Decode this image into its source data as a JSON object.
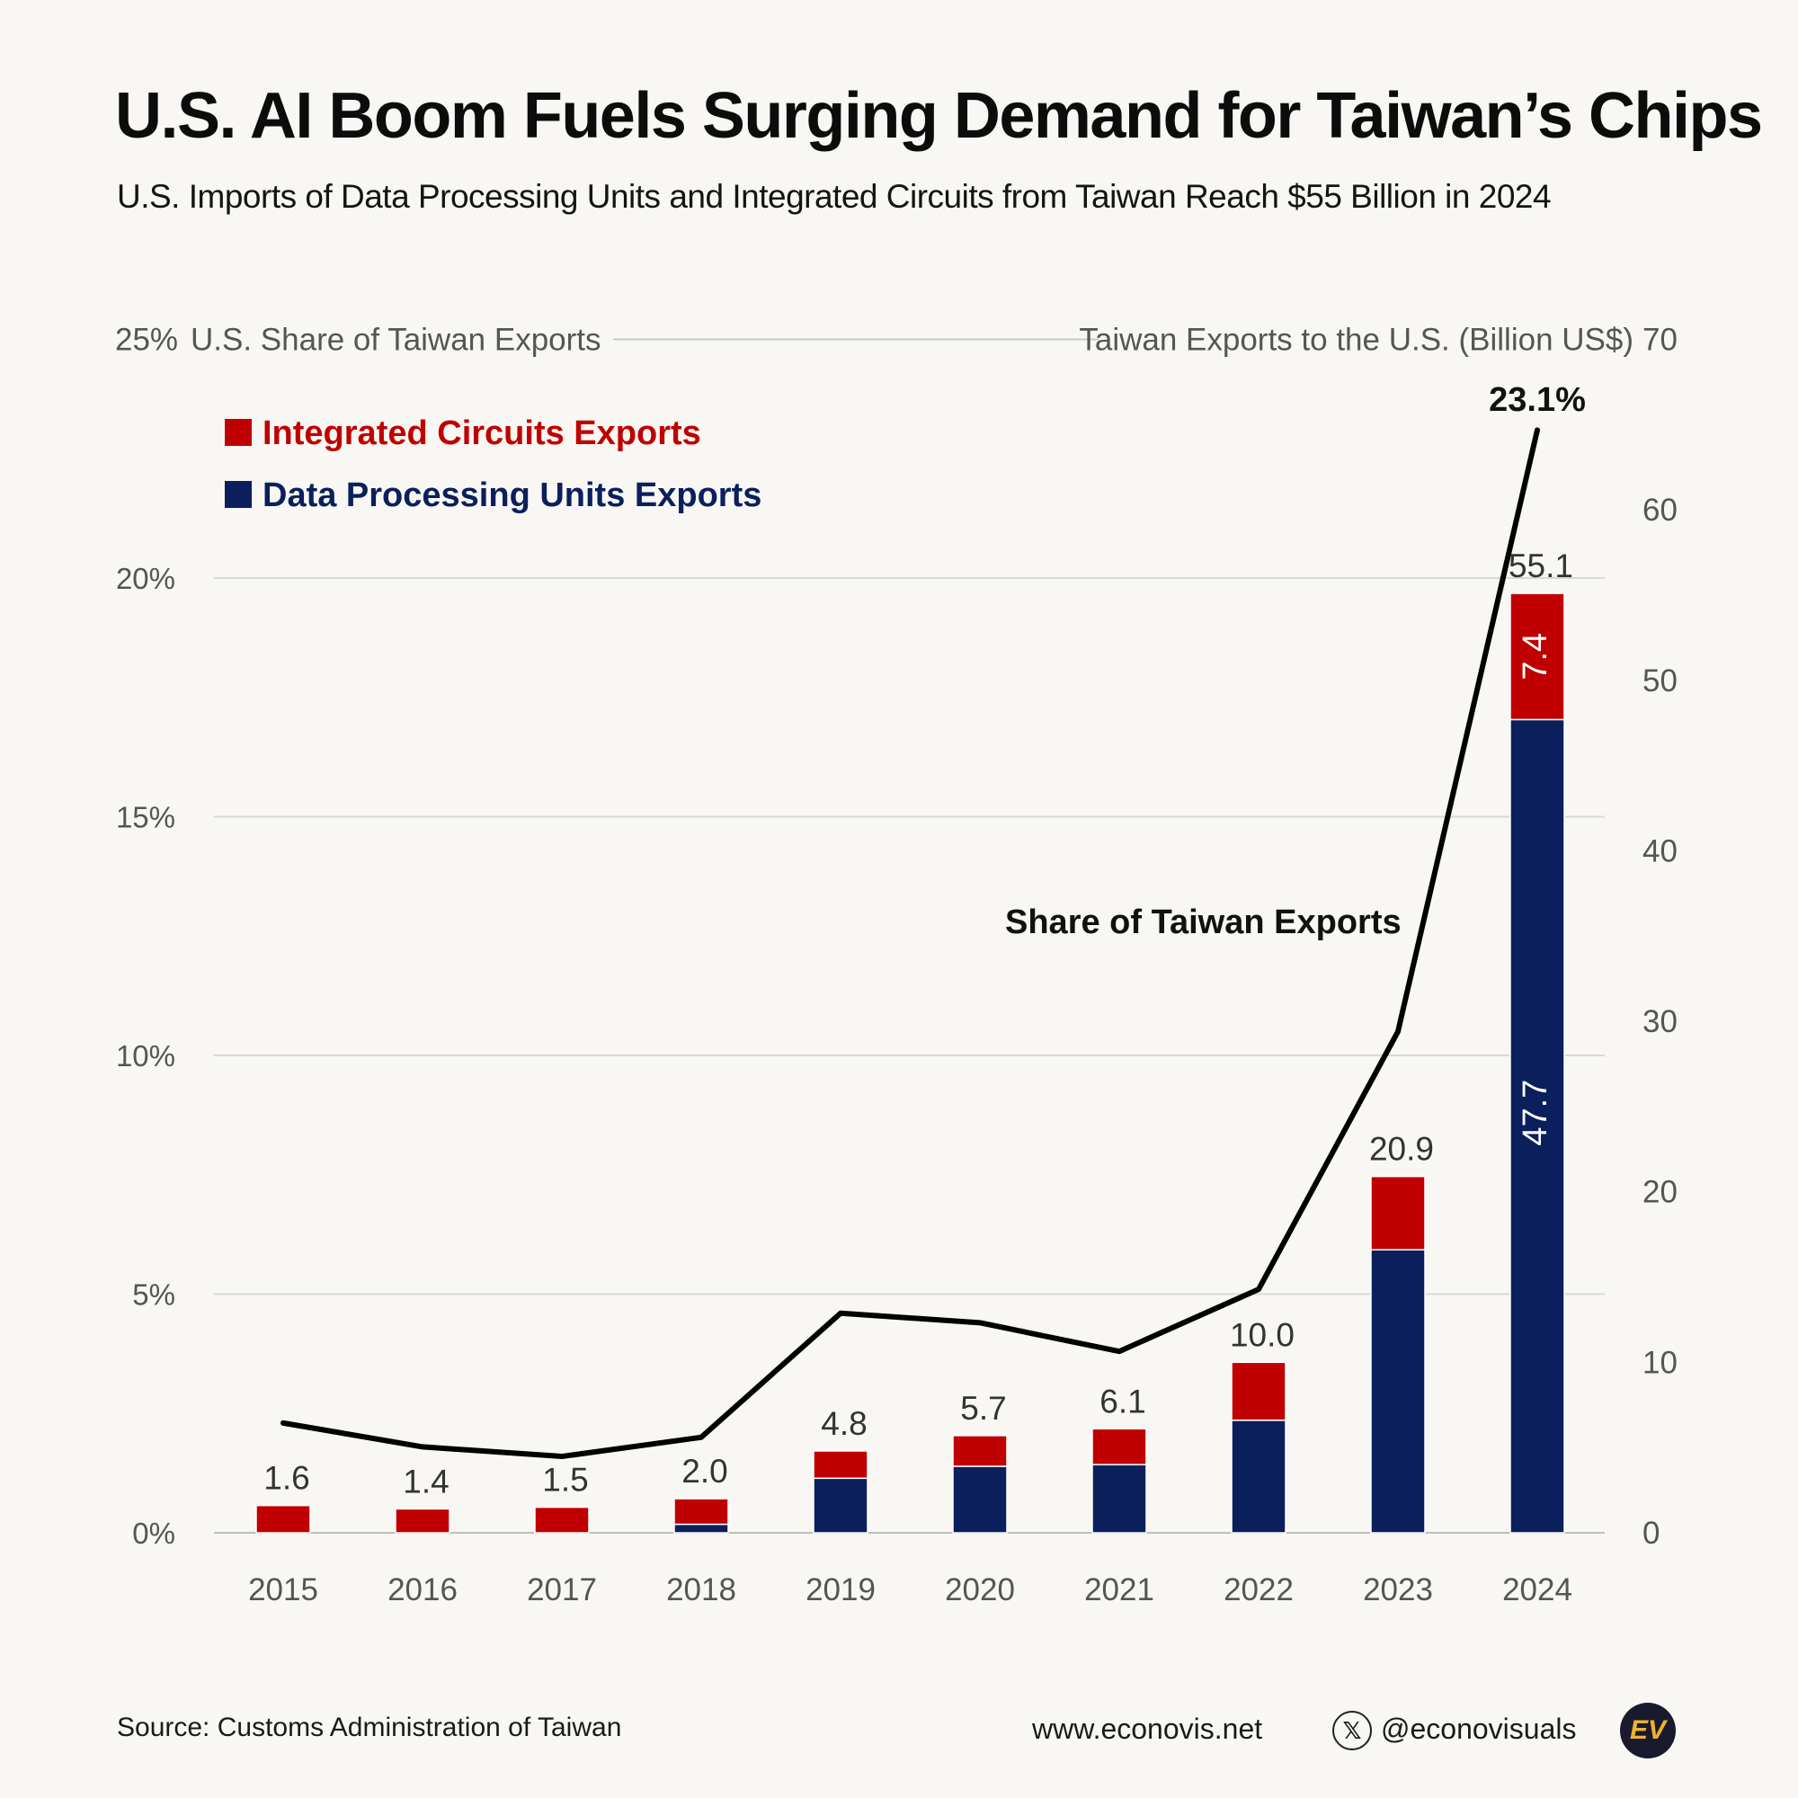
{
  "title": "U.S. AI Boom Fuels Surging Demand for Taiwan’s Chips",
  "subtitle": "U.S. Imports of Data Processing Units and Integrated Circuits from Taiwan Reach $55 Billion in 2024",
  "colors": {
    "ic": "#c00000",
    "dpu": "#0b1f5c",
    "line": "#000000",
    "grid": "#d8d8d8",
    "axis_text": "#555555"
  },
  "chart_data": {
    "type": "bar",
    "stacked": true,
    "secondary_type": "line",
    "categories": [
      "2015",
      "2016",
      "2017",
      "2018",
      "2019",
      "2020",
      "2021",
      "2022",
      "2023",
      "2024"
    ],
    "series": [
      {
        "name": "Data Processing Units Exports",
        "values": [
          0.0,
          0.0,
          0.0,
          0.5,
          3.2,
          3.9,
          4.0,
          6.6,
          16.6,
          47.7
        ]
      },
      {
        "name": "Integrated Circuits Exports",
        "values": [
          1.6,
          1.4,
          1.5,
          1.5,
          1.6,
          1.8,
          2.1,
          3.4,
          4.3,
          7.4
        ]
      }
    ],
    "totals": [
      "1.6",
      "1.4",
      "1.5",
      "2.0",
      "4.8",
      "5.7",
      "6.1",
      "10.0",
      "20.9",
      "55.1"
    ],
    "segment_labels": {
      "ic_2024": "7.4",
      "dpu_2024": "47.7"
    },
    "line_series": {
      "name": "Share of Taiwan Exports",
      "values": [
        2.3,
        1.8,
        1.6,
        2.0,
        4.6,
        4.4,
        3.8,
        5.1,
        10.5,
        23.1
      ],
      "end_label": "23.1%"
    },
    "left_axis": {
      "label": "U.S. Share of Taiwan Exports",
      "min": 0,
      "max": 25,
      "ticks": [
        "0%",
        "5%",
        "10%",
        "15%",
        "20%",
        "25%"
      ]
    },
    "right_axis": {
      "label": "Taiwan Exports to the U.S. (Billion US$)",
      "min": 0,
      "max": 70,
      "ticks": [
        "0",
        "10",
        "20",
        "30",
        "40",
        "50",
        "60",
        "70"
      ]
    },
    "legend": [
      "Integrated Circuits Exports",
      "Data Processing Units Exports"
    ],
    "legend_position": "top-left"
  },
  "footer": {
    "source": "Source: Customs Administration of Taiwan",
    "website": "www.econovis.net",
    "x_icon": "𝕏",
    "handle": "@econovisuals",
    "logo_text": "EV"
  }
}
